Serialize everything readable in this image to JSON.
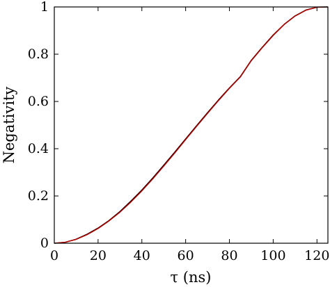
{
  "chart_data": {
    "type": "line",
    "title": "",
    "xlabel": "τ (ns)",
    "ylabel": "Negativity",
    "xlim": [
      0,
      125
    ],
    "ylim": [
      0,
      1
    ],
    "grid": false,
    "xticks": [
      0,
      20,
      40,
      60,
      80,
      100,
      120
    ],
    "yticks": [
      0,
      0.2,
      0.4,
      0.6,
      0.8,
      1
    ],
    "xtick_labels": [
      "0",
      "20",
      "40",
      "60",
      "80",
      "100",
      "120"
    ],
    "ytick_labels": [
      "0",
      "0.2",
      "0.4",
      "0.6",
      "0.8",
      "1"
    ],
    "series": [
      {
        "color": "#000000",
        "x": [
          0,
          5,
          10,
          15,
          20,
          25,
          30,
          35,
          40,
          45,
          50,
          55,
          60,
          65,
          70,
          75,
          80,
          85,
          90,
          95,
          100,
          105,
          110,
          115,
          120,
          125
        ],
        "y": [
          0,
          0.004,
          0.017,
          0.038,
          0.064,
          0.096,
          0.134,
          0.178,
          0.225,
          0.276,
          0.33,
          0.385,
          0.441,
          0.497,
          0.552,
          0.606,
          0.657,
          0.705,
          0.774,
          0.829,
          0.881,
          0.926,
          0.962,
          0.987,
          0.999,
          1.0
        ]
      },
      {
        "color": "#cc0000",
        "x": [
          0,
          5,
          10,
          15,
          20,
          25,
          30,
          35,
          40,
          45,
          50,
          55,
          60,
          65,
          70,
          75,
          80,
          85,
          90,
          95,
          100,
          105,
          110,
          115,
          120,
          125
        ],
        "y": [
          0,
          0.004,
          0.016,
          0.036,
          0.062,
          0.094,
          0.131,
          0.174,
          0.221,
          0.272,
          0.326,
          0.381,
          0.438,
          0.494,
          0.549,
          0.603,
          0.655,
          0.703,
          0.772,
          0.827,
          0.879,
          0.925,
          0.961,
          0.986,
          0.999,
          1.0
        ]
      }
    ]
  }
}
